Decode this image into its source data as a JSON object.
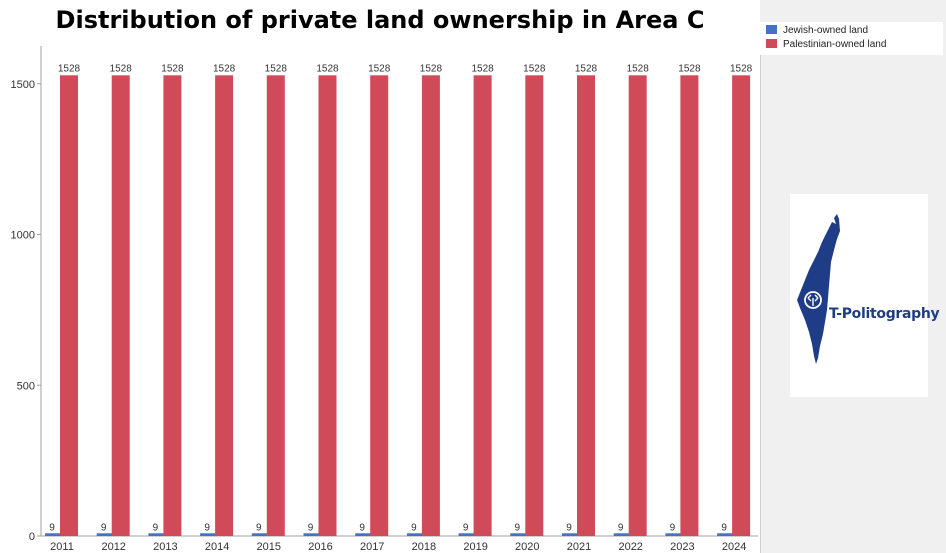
{
  "title": "Distribution of private land ownership in Area C",
  "legend": [
    {
      "label": "Jewish-owned land",
      "color": "#4472c4"
    },
    {
      "label": "Palestinian-owned land",
      "color": "#d14a5a"
    }
  ],
  "logo": {
    "text": "T-Politography",
    "color": "#1f3d86",
    "icon": "israel-map-icon"
  },
  "chart_data": {
    "type": "bar",
    "title": "Distribution of private land ownership in Area C",
    "xlabel": "",
    "ylabel": "",
    "categories": [
      "2011",
      "2012",
      "2013",
      "2014",
      "2015",
      "2016",
      "2017",
      "2018",
      "2019",
      "2020",
      "2021",
      "2022",
      "2023",
      "2024"
    ],
    "series": [
      {
        "name": "Jewish-owned land",
        "color": "#4472c4",
        "values": [
          9,
          9,
          9,
          9,
          9,
          9,
          9,
          9,
          9,
          9,
          9,
          9,
          9,
          9
        ]
      },
      {
        "name": "Palestinian-owned land",
        "color": "#d14a5a",
        "values": [
          1528,
          1528,
          1528,
          1528,
          1528,
          1528,
          1528,
          1528,
          1528,
          1528,
          1528,
          1528,
          1528,
          1528
        ]
      }
    ],
    "y_ticks": [
      0,
      500,
      1000,
      1500
    ],
    "ylim": [
      0,
      1640
    ],
    "grid": false,
    "legend_position": "top-right"
  }
}
